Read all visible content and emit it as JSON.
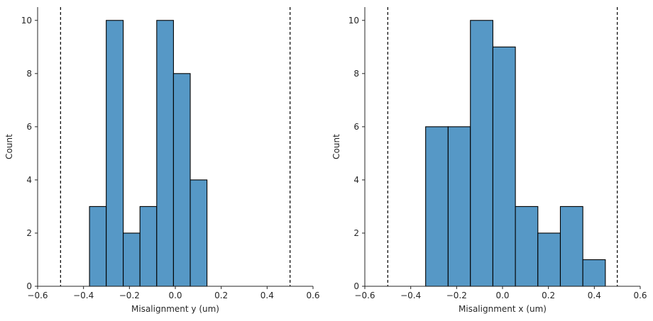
{
  "chart_data": [
    {
      "type": "histogram",
      "xlabel": "Misalignment y (um)",
      "ylabel": "Count",
      "xlim": [
        -0.6,
        0.6
      ],
      "ylim": [
        0,
        10.5
      ],
      "xticks": [
        -0.6,
        -0.4,
        -0.2,
        0.0,
        0.2,
        0.4,
        0.6
      ],
      "xtick_labels": [
        "−0.6",
        "−0.4",
        "−0.2",
        "0.0",
        "0.2",
        "0.4",
        "0.6"
      ],
      "yticks": [
        0,
        2,
        4,
        6,
        8,
        10
      ],
      "ytick_labels": [
        "0",
        "2",
        "4",
        "6",
        "8",
        "10"
      ],
      "bins": [
        {
          "start": -0.374,
          "end": -0.301,
          "count": 3
        },
        {
          "start": -0.301,
          "end": -0.227,
          "count": 10
        },
        {
          "start": -0.227,
          "end": -0.154,
          "count": 2
        },
        {
          "start": -0.154,
          "end": -0.081,
          "count": 3
        },
        {
          "start": -0.081,
          "end": -0.008,
          "count": 10
        },
        {
          "start": -0.008,
          "end": 0.065,
          "count": 8
        },
        {
          "start": 0.065,
          "end": 0.138,
          "count": 4
        }
      ],
      "vlines": [
        -0.5,
        0.5
      ],
      "bar_color": "#5698c6",
      "edge_color": "#000000"
    },
    {
      "type": "histogram",
      "xlabel": "Misalignment x (um)",
      "ylabel": "Count",
      "xlim": [
        -0.6,
        0.6
      ],
      "ylim": [
        0,
        10.5
      ],
      "xticks": [
        -0.6,
        -0.4,
        -0.2,
        0.0,
        0.2,
        0.4,
        0.6
      ],
      "xtick_labels": [
        "−0.6",
        "−0.4",
        "−0.2",
        "0.0",
        "0.2",
        "0.4",
        "0.6"
      ],
      "yticks": [
        0,
        2,
        4,
        6,
        8,
        10
      ],
      "ytick_labels": [
        "0",
        "2",
        "4",
        "6",
        "8",
        "10"
      ],
      "bins": [
        {
          "start": -0.335,
          "end": -0.237,
          "count": 6
        },
        {
          "start": -0.237,
          "end": -0.14,
          "count": 6
        },
        {
          "start": -0.14,
          "end": -0.042,
          "count": 10
        },
        {
          "start": -0.042,
          "end": 0.056,
          "count": 9
        },
        {
          "start": 0.056,
          "end": 0.154,
          "count": 3
        },
        {
          "start": 0.154,
          "end": 0.252,
          "count": 2
        },
        {
          "start": 0.252,
          "end": 0.35,
          "count": 3
        },
        {
          "start": 0.35,
          "end": 0.448,
          "count": 1
        }
      ],
      "vlines": [
        -0.5,
        0.5
      ],
      "bar_color": "#5698c6",
      "edge_color": "#000000"
    }
  ]
}
